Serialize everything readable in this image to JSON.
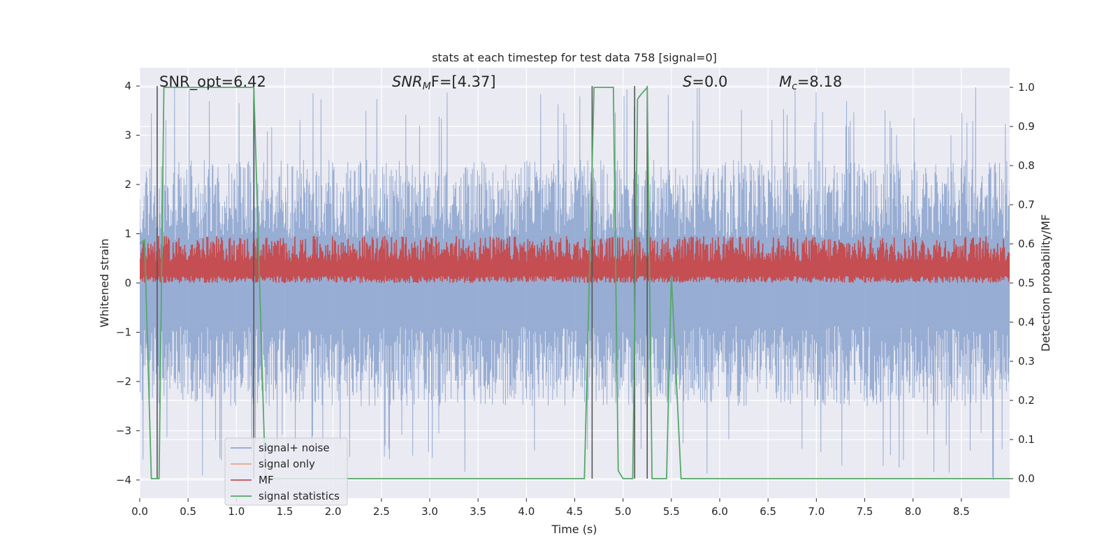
{
  "chart_data": {
    "type": "line",
    "title": "stats at each timestep for test data 758 [signal=0]",
    "xlabel": "Time (s)",
    "ylabel_left": "Whitened strain",
    "ylabel_right": "Detection probability/MF",
    "xlim": [
      0,
      9.0
    ],
    "ylim_left": [
      -4.37,
      4.37
    ],
    "ylim_right": [
      -0.05,
      1.05
    ],
    "x_ticks": [
      0.0,
      0.5,
      1.0,
      1.5,
      2.0,
      2.5,
      3.0,
      3.5,
      4.0,
      4.5,
      5.0,
      5.5,
      6.0,
      6.5,
      7.0,
      7.5,
      8.0,
      8.5
    ],
    "x_tick_labels": [
      "0.0",
      "0.5",
      "1.0",
      "1.5",
      "2.0",
      "2.5",
      "3.0",
      "3.5",
      "4.0",
      "4.5",
      "5.0",
      "5.5",
      "6.0",
      "6.5",
      "7.0",
      "7.5",
      "8.0",
      "8.5"
    ],
    "y_left_ticks": [
      -4,
      -3,
      -2,
      -1,
      0,
      1,
      2,
      3,
      4
    ],
    "y_left_tick_labels": [
      "−4",
      "−3",
      "−2",
      "−1",
      "0",
      "1",
      "2",
      "3",
      "4"
    ],
    "y_right_ticks": [
      0.0,
      0.1,
      0.2,
      0.3,
      0.4,
      0.5,
      0.6,
      0.7,
      0.8,
      0.9,
      1.0
    ],
    "y_right_tick_labels": [
      "0.0",
      "0.1",
      "0.2",
      "0.3",
      "0.4",
      "0.5",
      "0.6",
      "0.7",
      "0.8",
      "0.9",
      "1.0"
    ],
    "grid": true,
    "annotations": [
      {
        "label": "SNR_opt=6.42",
        "x": 0.2
      },
      {
        "label_main": "SNR",
        "label_sub": "M",
        "label_rest": "F=[4.37]",
        "x": 2.6
      },
      {
        "label_main": "S",
        "label_rest": "=0.0",
        "x": 5.6
      },
      {
        "label_main": "M",
        "label_sub": "c",
        "label_rest": "=8.18",
        "x": 6.6
      }
    ],
    "series": [
      {
        "name": "signal+ noise",
        "color": "#8fa6cf",
        "axis": "left",
        "kind": "noise",
        "abs_max_typical": 2.5,
        "abs_max_peak": 4.0
      },
      {
        "name": "signal only",
        "color": "#e9a58a",
        "axis": "left",
        "kind": "empty"
      },
      {
        "name": "MF",
        "color": "#c44e52",
        "axis": "right",
        "kind": "noise",
        "range": [
          0.5,
          0.62
        ]
      },
      {
        "name": "signal statistics",
        "color": "#55a868",
        "axis": "right",
        "kind": "line",
        "x": [
          0.0,
          0.05,
          0.12,
          0.2,
          0.25,
          1.18,
          1.3,
          4.6,
          4.7,
          4.9,
          4.95,
          5.0,
          5.1,
          5.15,
          5.18,
          5.25,
          5.3,
          5.45,
          5.5,
          5.6,
          9.0
        ],
        "y": [
          0.6,
          0.61,
          0.0,
          0.0,
          1.0,
          1.0,
          0.0,
          0.0,
          1.0,
          1.0,
          0.02,
          0.0,
          0.0,
          0.97,
          0.98,
          1.0,
          0.0,
          0.0,
          0.52,
          0.0,
          0.0
        ]
      }
    ],
    "vertical_markers_x": [
      0.18,
      1.18,
      4.68,
      5.12,
      5.25
    ],
    "legend": {
      "location": "lower-left",
      "entries": [
        "signal+ noise",
        "signal only",
        "MF",
        "signal statistics"
      ]
    },
    "colors": {
      "plot_bg": "#eaeaf2",
      "grid": "#ffffff",
      "marker": "#555555"
    }
  }
}
